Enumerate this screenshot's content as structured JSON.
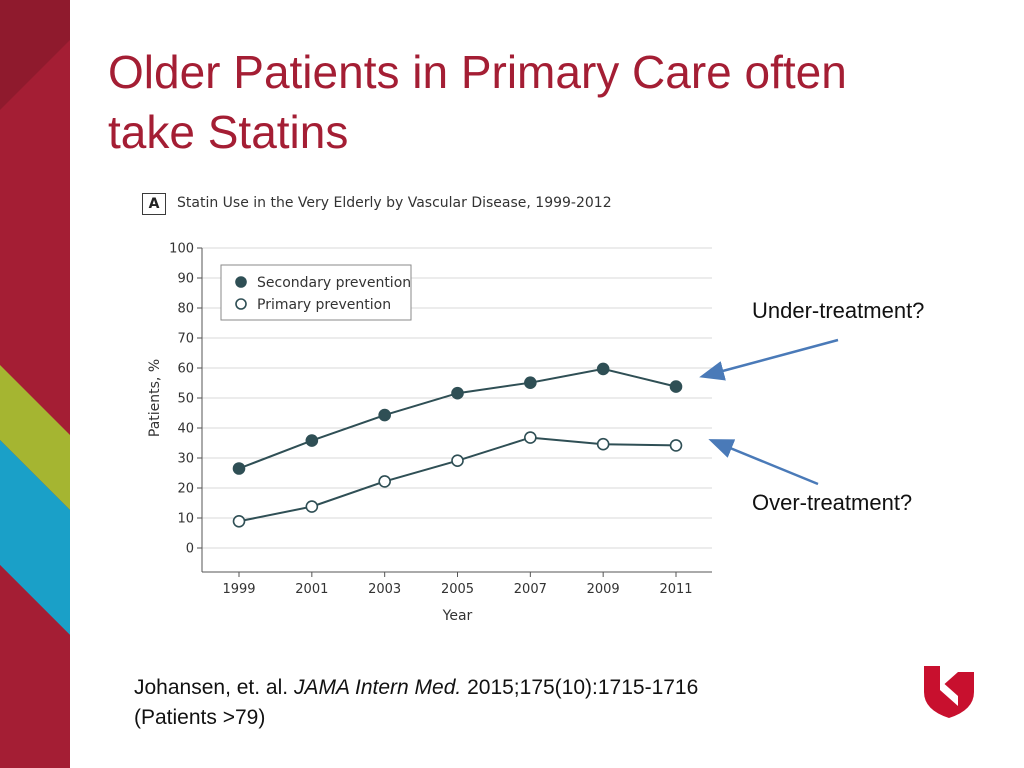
{
  "slide": {
    "title_line1": "Older Patients in Primary Care often",
    "title_line2": "take Statins",
    "title_color": "#a41e34"
  },
  "panel": {
    "letter": "A",
    "title": "Statin Use in the Very Elderly by Vascular Disease, 1999-2012"
  },
  "callouts": {
    "under": "Under-treatment?",
    "over": "Over-treatment?",
    "arrow_color": "#4a7ab8"
  },
  "citation": {
    "authors": "Johansen, et. al.",
    "journal": "JAMA Intern Med.",
    "ref": "2015;175(10):1715-1716",
    "note": "(Patients >79)"
  },
  "chart_data": {
    "type": "line",
    "title": "Statin Use in the Very Elderly by Vascular Disease, 1999-2012",
    "xlabel": "Year",
    "ylabel": "Patients, %",
    "x": [
      1999,
      2001,
      2003,
      2005,
      2007,
      2009,
      2011
    ],
    "ylim": [
      0,
      100
    ],
    "yticks": [
      0,
      10,
      20,
      30,
      40,
      50,
      60,
      70,
      80,
      90,
      100
    ],
    "grid": true,
    "legend_position": "top-left",
    "line_color": "#2f4f55",
    "series": [
      {
        "name": "Secondary prevention",
        "marker": "filled",
        "values": [
          26.5,
          35.8,
          44.3,
          51.6,
          55.1,
          59.7,
          53.8
        ]
      },
      {
        "name": "Primary prevention",
        "marker": "open",
        "values": [
          8.9,
          13.8,
          22.2,
          29.1,
          36.8,
          34.6,
          34.2
        ]
      }
    ]
  }
}
